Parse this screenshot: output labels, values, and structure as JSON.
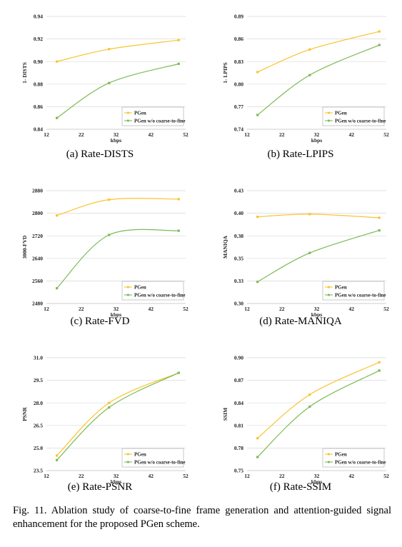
{
  "legend": {
    "series1": "PGen",
    "series2": "PGen w/o coarse-to-fine"
  },
  "colors": {
    "pgen": "#F9C430",
    "ablation": "#7DBA56"
  },
  "figure_caption": "Fig. 11.   Ablation study of coarse-to-fine frame generation and attention-guided signal enhancement for the proposed PGen scheme.",
  "chart_data": [
    {
      "type": "line",
      "id": "a",
      "caption": "(a) Rate-DISTS",
      "xlabel": "kbps",
      "ylabel": "1- DISTS",
      "xlim": [
        12,
        52
      ],
      "xticks": [
        "12",
        "22",
        "32",
        "42",
        "52"
      ],
      "ylim": [
        0.84,
        0.94
      ],
      "yticks": [
        "0.84",
        "0.86",
        "0.88",
        "0.90",
        "0.92",
        "0.94"
      ],
      "series": [
        {
          "name": "PGen",
          "x": [
            15,
            30,
            50
          ],
          "y": [
            0.9,
            0.911,
            0.919
          ]
        },
        {
          "name": "PGen w/o coarse-to-fine",
          "x": [
            15,
            30,
            50
          ],
          "y": [
            0.85,
            0.881,
            0.898
          ]
        }
      ]
    },
    {
      "type": "line",
      "id": "b",
      "caption": "(b) Rate-LPIPS",
      "xlabel": "kbps",
      "ylabel": "1- LPIPS",
      "xlim": [
        12,
        52
      ],
      "xticks": [
        "12",
        "22",
        "32",
        "42",
        "52"
      ],
      "ylim": [
        0.74,
        0.89
      ],
      "yticks": [
        "0.74",
        "0.77",
        "0.80",
        "0.83",
        "0.86",
        "0.89"
      ],
      "series": [
        {
          "name": "PGen",
          "x": [
            15,
            30,
            50
          ],
          "y": [
            0.816,
            0.846,
            0.87
          ]
        },
        {
          "name": "PGen w/o coarse-to-fine",
          "x": [
            15,
            30,
            50
          ],
          "y": [
            0.759,
            0.812,
            0.852
          ]
        }
      ]
    },
    {
      "type": "line",
      "id": "c",
      "caption": "(c) Rate-FVD",
      "xlabel": "kbps",
      "ylabel": "3000-FVD",
      "xlim": [
        12,
        52
      ],
      "xticks": [
        "12",
        "22",
        "32",
        "42",
        "52"
      ],
      "ylim": [
        2480,
        2880
      ],
      "yticks": [
        "2480",
        "2560",
        "2640",
        "2720",
        "2800",
        "2880"
      ],
      "series": [
        {
          "name": "PGen",
          "x": [
            15,
            30,
            50
          ],
          "y": [
            2792,
            2848,
            2850
          ]
        },
        {
          "name": "PGen w/o coarse-to-fine",
          "x": [
            15,
            30,
            50
          ],
          "y": [
            2534,
            2723,
            2738
          ]
        }
      ]
    },
    {
      "type": "line",
      "id": "d",
      "caption": "(d) Rate-MANIQA",
      "xlabel": "kbps",
      "ylabel": "MANIQA",
      "xlim": [
        12,
        52
      ],
      "xticks": [
        "12",
        "22",
        "32",
        "42",
        "52"
      ],
      "ylim": [
        0.3,
        0.43
      ],
      "yticks": [
        "0.30",
        "0.33",
        "0.35",
        "0.38",
        "0.40",
        "0.43"
      ],
      "ylim_numeric": [
        0.3,
        0.425
      ],
      "series": [
        {
          "name": "PGen",
          "x": [
            15,
            30,
            50
          ],
          "y": [
            0.396,
            0.399,
            0.395
          ]
        },
        {
          "name": "PGen w/o coarse-to-fine",
          "x": [
            15,
            30,
            50
          ],
          "y": [
            0.324,
            0.356,
            0.381
          ]
        }
      ]
    },
    {
      "type": "line",
      "id": "e",
      "caption": "(e) Rate-PSNR",
      "xlabel": "kbps",
      "ylabel": "PSNR",
      "xlim": [
        12,
        52
      ],
      "xticks": [
        "12",
        "22",
        "32",
        "42",
        "52"
      ],
      "ylim": [
        23.5,
        31.0
      ],
      "yticks": [
        "23.5",
        "25.0",
        "26.5",
        "28.0",
        "29.5",
        "31.0"
      ],
      "series": [
        {
          "name": "PGen",
          "x": [
            15,
            30,
            50
          ],
          "y": [
            24.5,
            28.0,
            30.0
          ]
        },
        {
          "name": "PGen w/o coarse-to-fine",
          "x": [
            15,
            30,
            50
          ],
          "y": [
            24.2,
            27.7,
            30.0
          ]
        }
      ]
    },
    {
      "type": "line",
      "id": "f",
      "caption": "(f) Rate-SSIM",
      "xlabel": "kbps",
      "ylabel": "SSIM",
      "xlim": [
        12,
        52
      ],
      "xticks": [
        "12",
        "22",
        "32",
        "42",
        "52"
      ],
      "ylim": [
        0.75,
        0.9
      ],
      "yticks": [
        "0.75",
        "0.78",
        "0.81",
        "0.84",
        "0.87",
        "0.90"
      ],
      "series": [
        {
          "name": "PGen",
          "x": [
            15,
            30,
            50
          ],
          "y": [
            0.793,
            0.851,
            0.894
          ]
        },
        {
          "name": "PGen w/o coarse-to-fine",
          "x": [
            15,
            30,
            50
          ],
          "y": [
            0.768,
            0.835,
            0.883
          ]
        }
      ]
    }
  ]
}
